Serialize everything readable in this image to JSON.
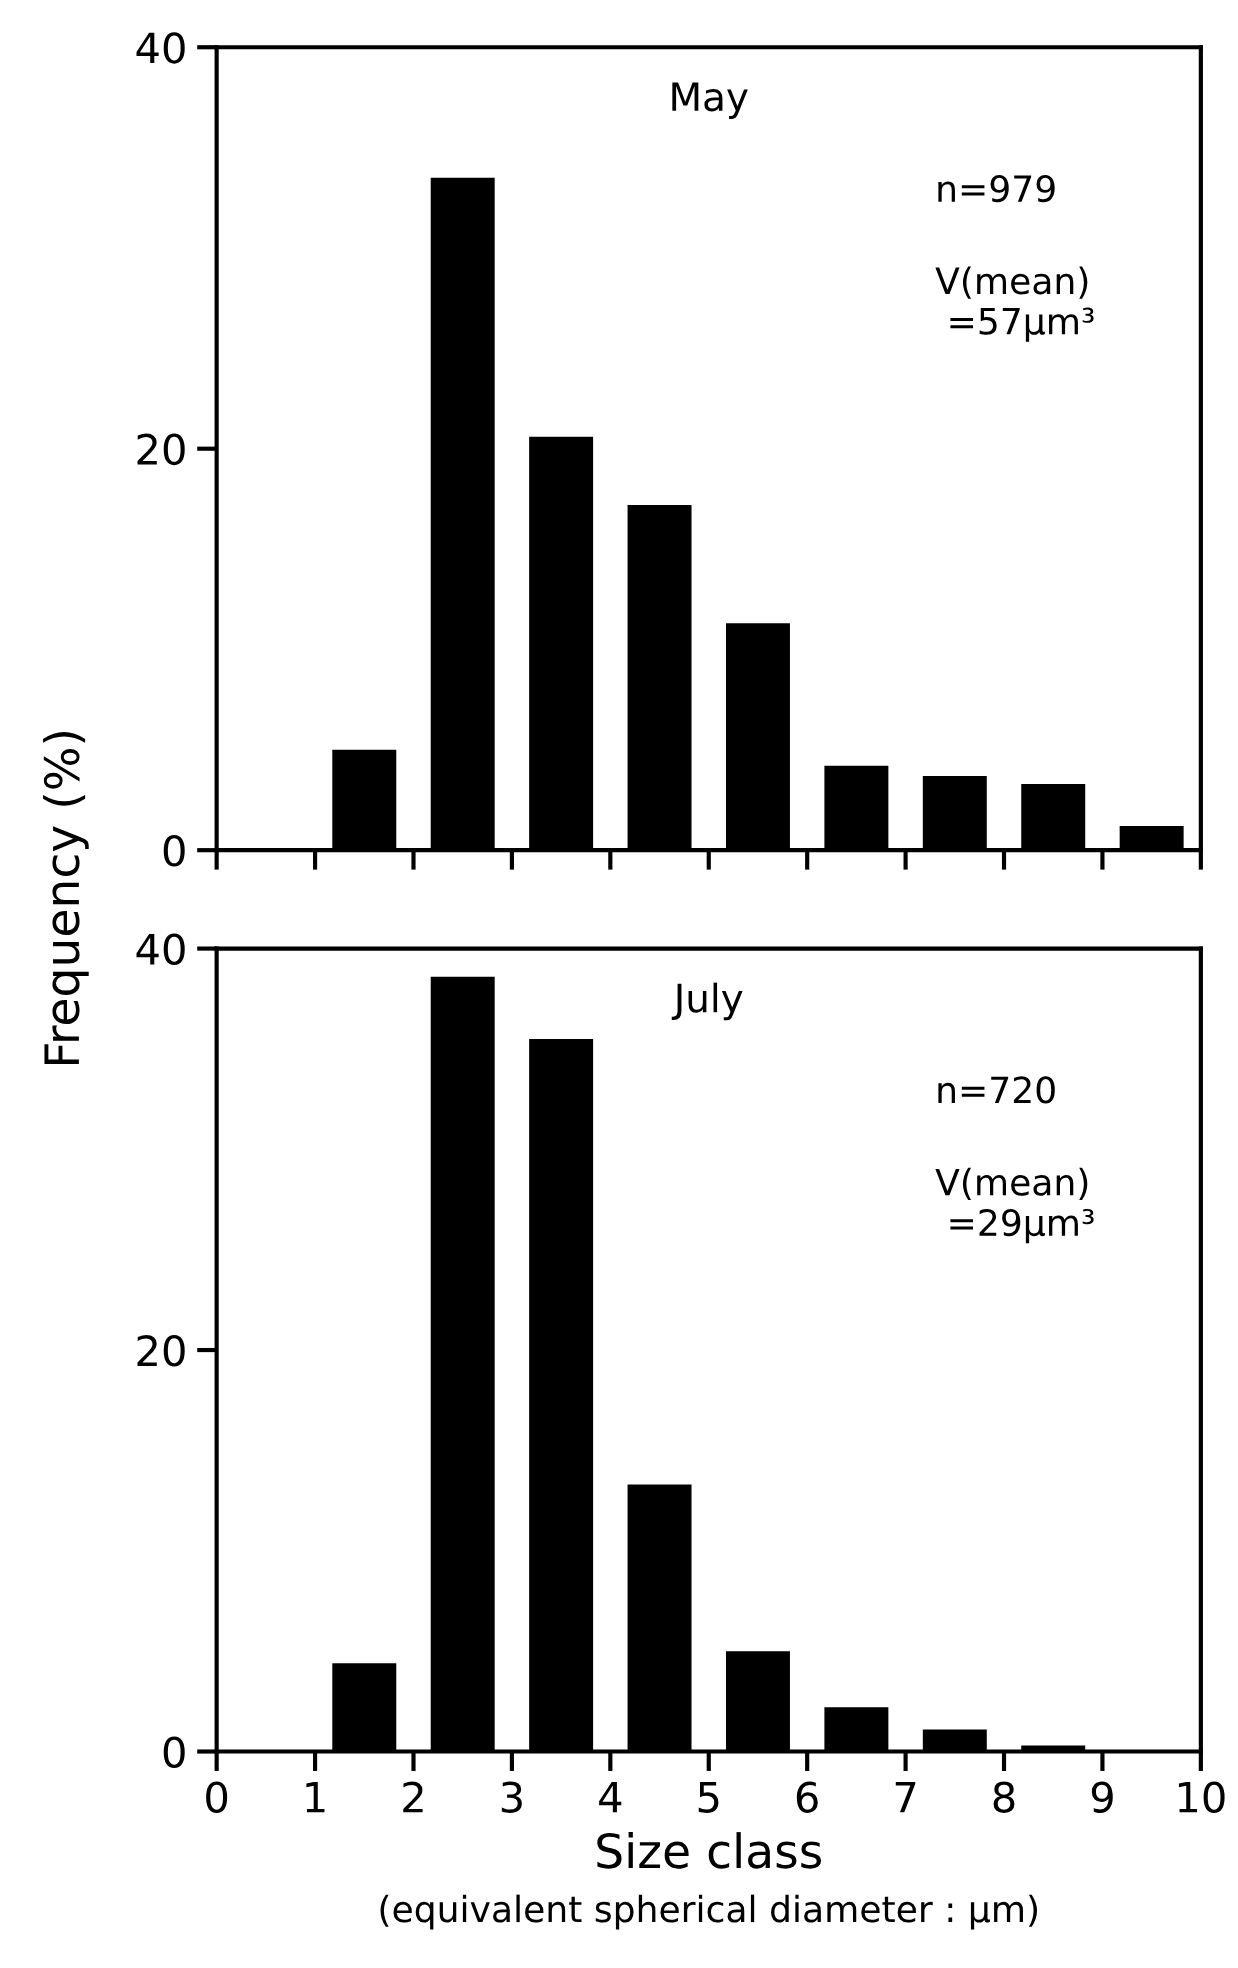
{
  "chart_data": [
    {
      "type": "bar",
      "title": "May",
      "ylabel": "Frequency (%)",
      "x": [
        1.5,
        2.5,
        3.5,
        4.5,
        5.5,
        6.5,
        7.5,
        8.5,
        9.5
      ],
      "values": [
        5.0,
        33.5,
        20.6,
        17.2,
        11.3,
        4.2,
        3.7,
        3.3,
        1.2
      ],
      "color": "#000000",
      "xlim": [
        0,
        10
      ],
      "xticks": [
        0,
        1,
        2,
        3,
        4,
        5,
        6,
        7,
        8,
        9,
        10
      ],
      "ylim": [
        0,
        40
      ],
      "yticks": [
        0,
        20,
        40
      ],
      "tick_labels": "y",
      "grid": false,
      "legend": false,
      "annotations": [
        "n=979",
        "V(mean)\n =57µm³"
      ]
    },
    {
      "type": "bar",
      "title": "July",
      "xlabel": "Size class",
      "x": [
        1.5,
        2.5,
        3.5,
        4.5,
        5.5,
        6.5,
        7.5,
        8.5
      ],
      "values": [
        4.4,
        38.6,
        35.5,
        13.3,
        5.0,
        2.2,
        1.1,
        0.3
      ],
      "color": "#000000",
      "xlim": [
        0,
        10
      ],
      "xticks": [
        0,
        1,
        2,
        3,
        4,
        5,
        6,
        7,
        8,
        9,
        10
      ],
      "ylim": [
        0,
        40
      ],
      "yticks": [
        0,
        20,
        40
      ],
      "grid": false,
      "legend": false,
      "annotations": [
        "n=720",
        "V(mean)\n =29µm³",
        "(equivalent spherical diameter : µm)"
      ]
    }
  ]
}
